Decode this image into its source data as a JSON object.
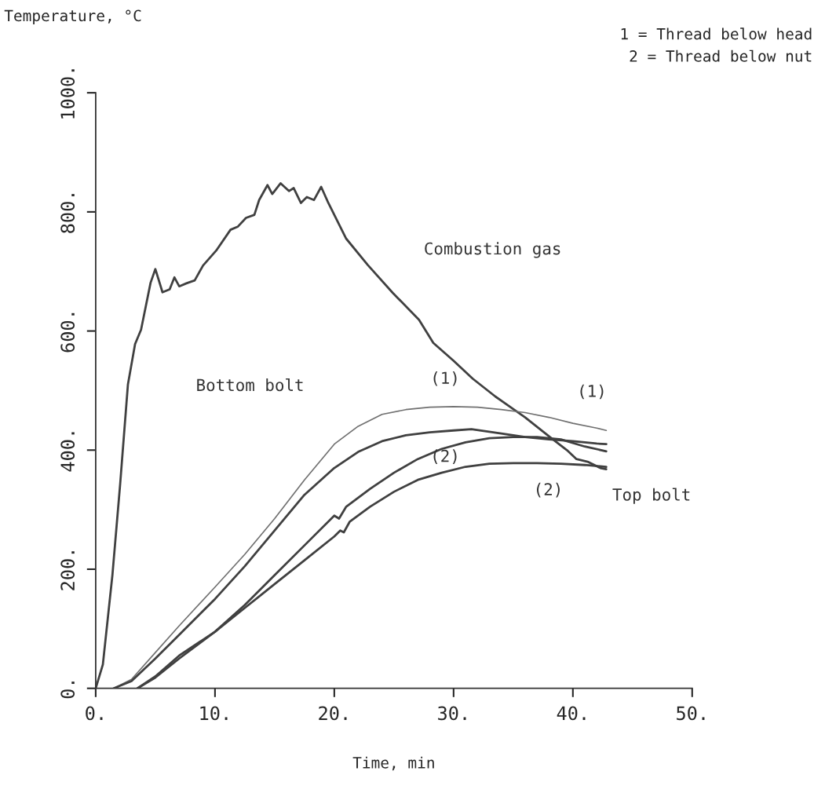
{
  "chart_data": {
    "type": "line",
    "ylabel": "Temperature, °C",
    "xlabel": "Time, min",
    "xlim": [
      0,
      50
    ],
    "ylim": [
      0,
      1000
    ],
    "xticks": [
      {
        "value": 0,
        "label": "0."
      },
      {
        "value": 10,
        "label": "10."
      },
      {
        "value": 20,
        "label": "20."
      },
      {
        "value": 30,
        "label": "30."
      },
      {
        "value": 40,
        "label": "40."
      },
      {
        "value": 50,
        "label": "50."
      }
    ],
    "yticks": [
      {
        "value": 0,
        "label": "0."
      },
      {
        "value": 200,
        "label": "200."
      },
      {
        "value": 400,
        "label": "400."
      },
      {
        "value": 600,
        "label": "600."
      },
      {
        "value": 800,
        "label": "800."
      },
      {
        "value": 1000,
        "label": "1000."
      }
    ],
    "grid": false,
    "legend": false,
    "marker": "none",
    "line_style": "solid",
    "series": [
      {
        "color": "#404040",
        "x": [
          0,
          0.6,
          1.4,
          2.05,
          2.7,
          3.3,
          3.8,
          4.6,
          5.0,
          5.6,
          6.2,
          6.6,
          7.0,
          7.6,
          8.3,
          9.0,
          10.1,
          11.3,
          11.9,
          12.6,
          13.3,
          13.7,
          14.4,
          14.8,
          15.5,
          16.2,
          16.6,
          17.2,
          17.7,
          18.3,
          18.9,
          19.5,
          21.0,
          22.8,
          24.9,
          27.1,
          28.3,
          30.0,
          31.6,
          33.5,
          36.0,
          38.2,
          39.5,
          40.3,
          41.3,
          42.3,
          42.8
        ],
        "values": [
          0,
          40,
          190,
          343,
          510,
          578,
          602,
          681,
          704,
          665,
          670,
          690,
          675,
          680,
          685,
          710,
          735,
          770,
          775,
          790,
          795,
          820,
          845,
          830,
          848,
          835,
          840,
          815,
          825,
          820,
          842,
          815,
          755,
          711,
          664,
          619,
          580,
          550,
          520,
          490,
          455,
          420,
          400,
          385,
          380,
          370,
          368
        ]
      },
      {
        "color": "#707070",
        "x": [
          1.5,
          3,
          5,
          7,
          10,
          12.5,
          15,
          17.5,
          20,
          22,
          24,
          26,
          28,
          30,
          32,
          34,
          36,
          38,
          40,
          42,
          42.8
        ],
        "values": [
          0,
          15,
          60,
          105,
          170,
          225,
          285,
          350,
          410,
          440,
          460,
          468,
          472,
          473,
          472,
          468,
          463,
          455,
          445,
          437,
          433
        ]
      },
      {
        "color": "#404040",
        "x": [
          1.5,
          3,
          5,
          7,
          10,
          12.5,
          15,
          17.5,
          20,
          22,
          24,
          26,
          28,
          30,
          31.5,
          34,
          36,
          38,
          40,
          42,
          42.8
        ],
        "values": [
          0,
          12,
          50,
          90,
          150,
          205,
          265,
          325,
          370,
          397,
          415,
          425,
          430,
          433,
          435,
          428,
          422,
          418,
          415,
          411,
          410
        ]
      },
      {
        "color": "#404040",
        "x": [
          3.5,
          5,
          7,
          10,
          12.5,
          15,
          17.5,
          20,
          20.4,
          21,
          23,
          25,
          27,
          29,
          31,
          33,
          35,
          37,
          39,
          41,
          42.8
        ],
        "values": [
          0,
          20,
          55,
          95,
          140,
          190,
          240,
          290,
          285,
          305,
          335,
          362,
          385,
          402,
          413,
          420,
          422,
          422,
          418,
          406,
          398
        ]
      },
      {
        "color": "#404040",
        "x": [
          3.5,
          5,
          7,
          10,
          12.5,
          15,
          17.5,
          20,
          20.5,
          20.8,
          21.3,
          23,
          25,
          27,
          29,
          31,
          33,
          35,
          37,
          39,
          41,
          42.8
        ],
        "values": [
          0,
          18,
          50,
          95,
          135,
          175,
          215,
          255,
          265,
          262,
          280,
          305,
          330,
          350,
          362,
          372,
          377,
          378,
          378,
          377,
          375,
          372
        ]
      }
    ],
    "annotations": [
      "Combustion gas",
      "Bottom bolt",
      "Top bolt",
      "(1)",
      "(1)",
      "(2)",
      "(2)",
      "1 = Thread below head",
      "2 = Thread below nut"
    ]
  }
}
